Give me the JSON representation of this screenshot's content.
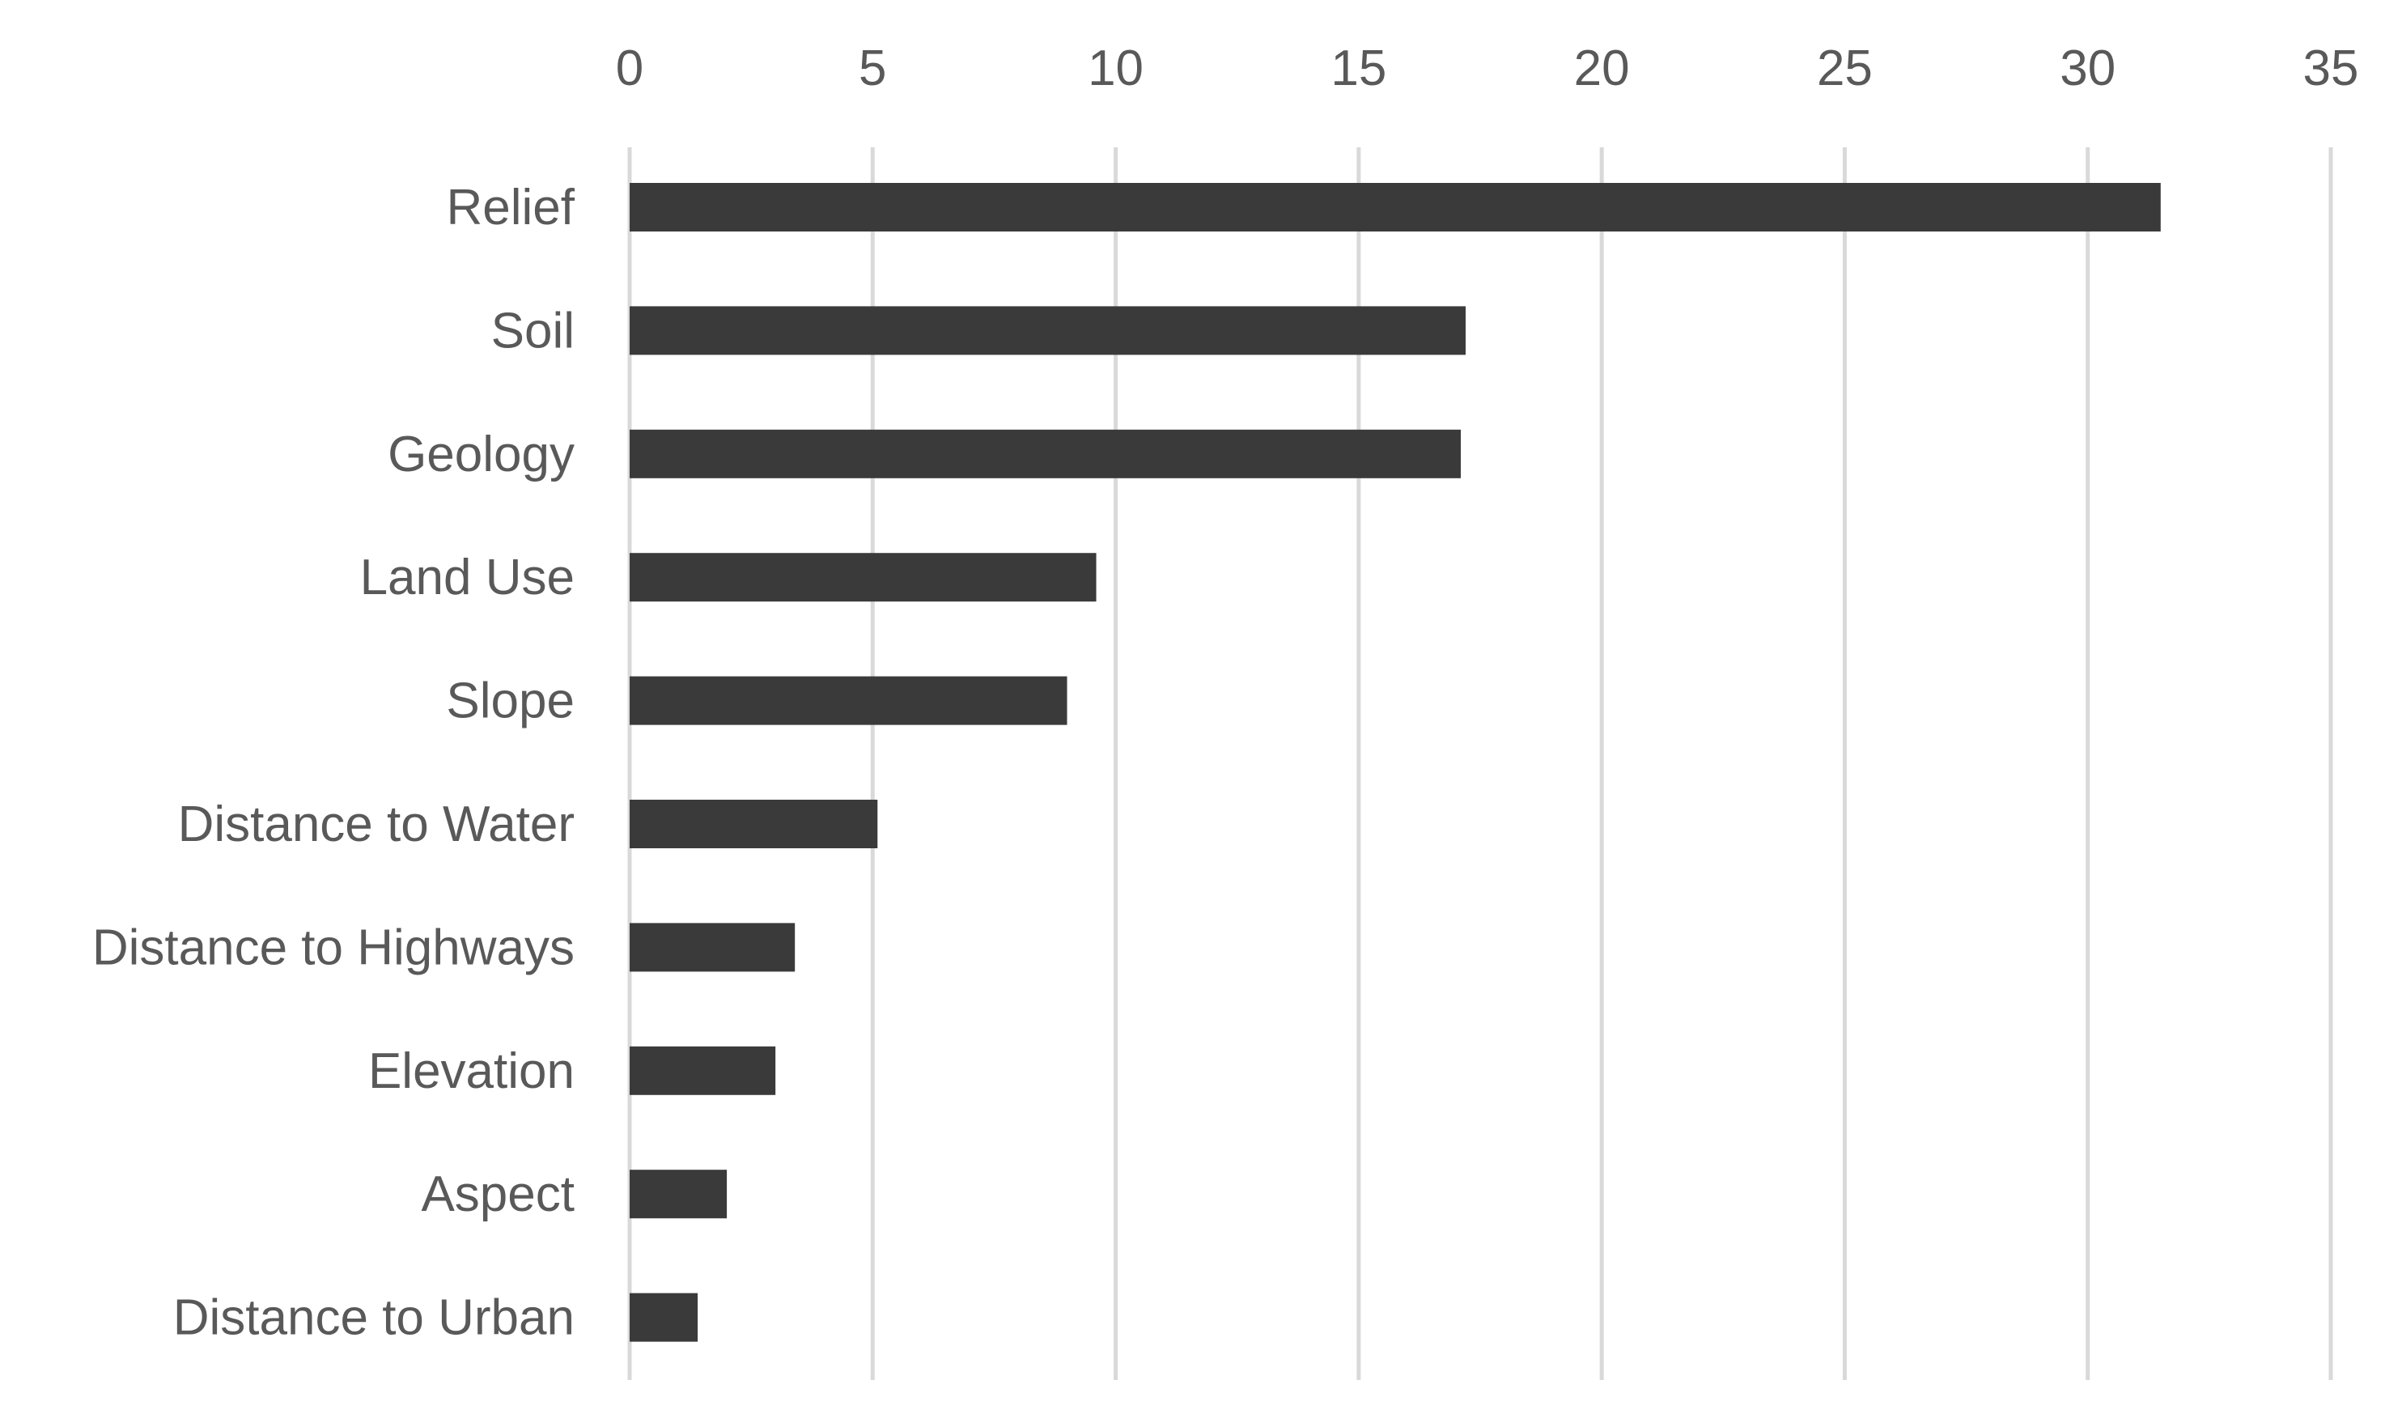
{
  "chart_data": {
    "type": "bar",
    "orientation": "horizontal",
    "title": "",
    "xlabel": "",
    "ylabel": "",
    "categories": [
      "Relief",
      "Soil",
      "Geology",
      "Land Use",
      "Slope",
      "Distance to Water",
      "Distance to Highways",
      "Elevation",
      "Aspect",
      "Distance to Urban"
    ],
    "values": [
      31.5,
      17.2,
      17.1,
      9.6,
      9.0,
      5.1,
      3.4,
      3.0,
      2.0,
      1.4
    ],
    "xlim": [
      0,
      35
    ],
    "xticks": [
      0,
      5,
      10,
      15,
      20,
      25,
      30,
      35
    ],
    "x_axis_position": "top",
    "grid": true,
    "legend": "none",
    "bar_color": "#3a3a3a",
    "grid_color": "#d9d9d9",
    "text_color": "#595959"
  }
}
